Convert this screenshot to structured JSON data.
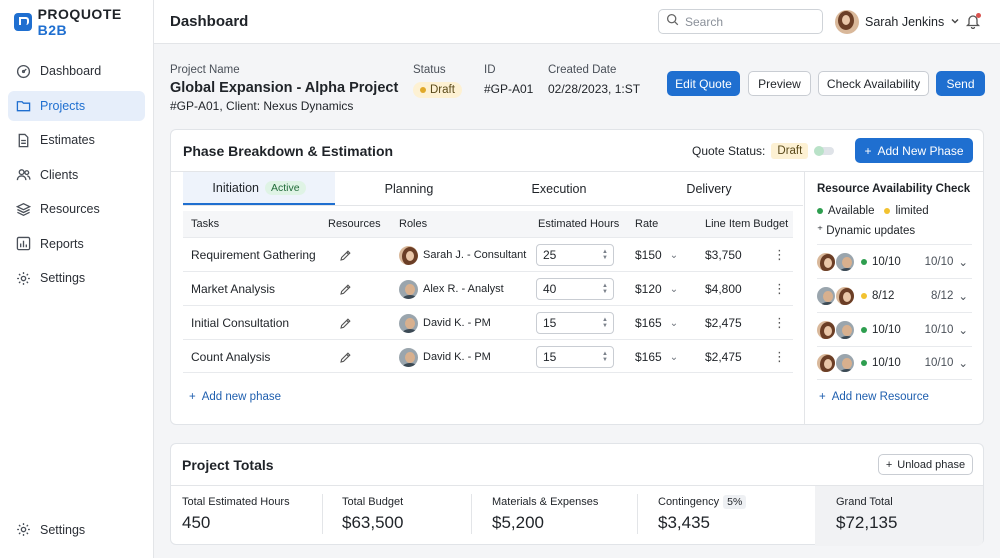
{
  "brand": {
    "name_left": "PROQUOTE",
    "name_right": "B2B"
  },
  "sidebar": {
    "items": [
      {
        "label": "Dashboard",
        "icon": "dashboard-icon"
      },
      {
        "label": "Projects",
        "icon": "folder-icon",
        "active": true
      },
      {
        "label": "Estimates",
        "icon": "document-icon"
      },
      {
        "label": "Clients",
        "icon": "users-icon"
      },
      {
        "label": "Resources",
        "icon": "layers-icon"
      },
      {
        "label": "Reports",
        "icon": "chart-icon"
      },
      {
        "label": "Settings",
        "icon": "gear-icon"
      }
    ],
    "bottom_item": {
      "label": "Settings",
      "icon": "gear-icon"
    }
  },
  "topbar": {
    "title": "Dashboard",
    "search_placeholder": "Search",
    "user_name": "Sarah Jenkins"
  },
  "project": {
    "name_label": "Project Name",
    "name": "Global Expansion - Alpha Project",
    "subline": "#GP-A01, Client: Nexus Dynamics",
    "status_label": "Status",
    "status": "Draft",
    "id_label": "ID",
    "id": "#GP-A01",
    "created_label": "Created Date",
    "created": "02/28/2023, 1:ST"
  },
  "actions": {
    "edit": "Edit Quote",
    "preview": "Preview",
    "check": "Check Availability",
    "send": "Send"
  },
  "phase": {
    "title": "Phase Breakdown & Estimation",
    "quote_status_label": "Quote Status:",
    "quote_status": "Draft",
    "add_phase": "Add New Phase",
    "tabs": [
      {
        "label": "Initiation",
        "badge": "Active"
      },
      {
        "label": "Planning"
      },
      {
        "label": "Execution"
      },
      {
        "label": "Delivery"
      }
    ],
    "columns": [
      "Tasks",
      "Resources",
      "Roles",
      "Estimated Hours",
      "Rate",
      "Line Item Budget"
    ],
    "rows": [
      {
        "task": "Requirement Gathering",
        "role": "Sarah J. - Consultant",
        "avatar": "female",
        "hours": "25",
        "rate": "$150",
        "budget": "$3,750"
      },
      {
        "task": "Market Analysis",
        "role": "Alex R. - Analyst",
        "avatar": "male",
        "hours": "40",
        "rate": "$120",
        "budget": "$4,800"
      },
      {
        "task": "Initial Consultation",
        "role": "David K. - PM",
        "avatar": "male",
        "hours": "15",
        "rate": "$165",
        "budget": "$2,475"
      },
      {
        "task": "Count Analysis",
        "role": "David K. - PM",
        "avatar": "male",
        "hours": "15",
        "rate": "$165",
        "budget": "$2,475"
      }
    ],
    "add_phase_link": "Add new phase"
  },
  "resources": {
    "title": "Resource Availability Check",
    "legend_available": "Available",
    "legend_limited": "limited",
    "dynamic": "Dynamic updates",
    "rows": [
      {
        "value": "10/10",
        "right": "10/10",
        "status": "available"
      },
      {
        "value": "8/12",
        "right": "8/12",
        "status": "limited"
      },
      {
        "value": "10/10",
        "right": "10/10",
        "status": "available"
      },
      {
        "value": "10/10",
        "right": "10/10",
        "status": "available"
      }
    ],
    "add_resource": "Add new Resource",
    "colors": {
      "available": "#2e9e4f",
      "limited": "#f2c230"
    }
  },
  "totals": {
    "title": "Project Totals",
    "upload": "Unload phase",
    "items": [
      {
        "label": "Total Estimated Hours",
        "value": "450"
      },
      {
        "label": "Total Budget",
        "value": "$63,500"
      },
      {
        "label": "Materials & Expenses",
        "value": "$5,200"
      },
      {
        "label": "Contingency",
        "pct": "5%",
        "value": "$3,435"
      },
      {
        "label": "Grand Total",
        "value": "$72,135"
      }
    ]
  }
}
